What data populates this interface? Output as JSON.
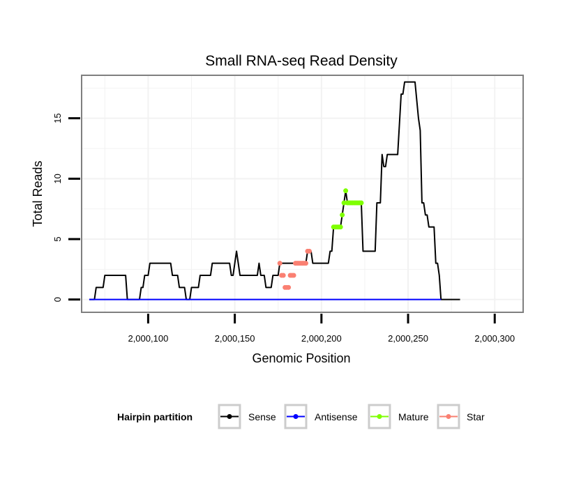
{
  "chart_data": {
    "type": "line",
    "title": "Small RNA-seq Read Density",
    "xlabel": "Genomic Position",
    "ylabel": "Total Reads",
    "xlim": [
      2000062,
      2000316
    ],
    "ylim": [
      -1,
      18.5
    ],
    "x_ticks": [
      2000100,
      2000150,
      2000200,
      2000250,
      2000300
    ],
    "x_tick_labels": [
      "2,000,100",
      "2,000,150",
      "2,000,200",
      "2,000,250",
      "2,000,300"
    ],
    "y_ticks": [
      0,
      5,
      10,
      15
    ],
    "y_tick_labels": [
      "0",
      "5",
      "10",
      "15"
    ],
    "grid": true,
    "legend": {
      "title": "Hairpin partition",
      "position": "bottom",
      "entries": [
        {
          "label": "Sense",
          "color": "#000000"
        },
        {
          "label": "Antisense",
          "color": "#0000ff"
        },
        {
          "label": "Mature",
          "color": "#7fff00"
        },
        {
          "label": "Star",
          "color": "#fa8072"
        }
      ]
    },
    "series": [
      {
        "name": "Sense",
        "color": "#000000",
        "style": "line",
        "points": [
          [
            2000066,
            0
          ],
          [
            2000069,
            0
          ],
          [
            2000070,
            1
          ],
          [
            2000074,
            1
          ],
          [
            2000075,
            2
          ],
          [
            2000087,
            2
          ],
          [
            2000088,
            0
          ],
          [
            2000095,
            0
          ],
          [
            2000096,
            1
          ],
          [
            2000097,
            1
          ],
          [
            2000098,
            2
          ],
          [
            2000100,
            2
          ],
          [
            2000101,
            3
          ],
          [
            2000113,
            3
          ],
          [
            2000114,
            2
          ],
          [
            2000117,
            2
          ],
          [
            2000118,
            1
          ],
          [
            2000121,
            1
          ],
          [
            2000122,
            0
          ],
          [
            2000124,
            0
          ],
          [
            2000125,
            1
          ],
          [
            2000129,
            1
          ],
          [
            2000130,
            2
          ],
          [
            2000136,
            2
          ],
          [
            2000137,
            3
          ],
          [
            2000147,
            3
          ],
          [
            2000148,
            2
          ],
          [
            2000149,
            2
          ],
          [
            2000150,
            3
          ],
          [
            2000151,
            4
          ],
          [
            2000152,
            3
          ],
          [
            2000153,
            2
          ],
          [
            2000163,
            2
          ],
          [
            2000164,
            3
          ],
          [
            2000165,
            2
          ],
          [
            2000167,
            2
          ],
          [
            2000168,
            1
          ],
          [
            2000171,
            1
          ],
          [
            2000172,
            2
          ],
          [
            2000175,
            2
          ],
          [
            2000176,
            3
          ],
          [
            2000191,
            3
          ],
          [
            2000192,
            4
          ],
          [
            2000194,
            4
          ],
          [
            2000195,
            3
          ],
          [
            2000204,
            3
          ],
          [
            2000205,
            4
          ],
          [
            2000206,
            4
          ],
          [
            2000207,
            6
          ],
          [
            2000211,
            6
          ],
          [
            2000212,
            7
          ],
          [
            2000213,
            8
          ],
          [
            2000214,
            9
          ],
          [
            2000215,
            8
          ],
          [
            2000223,
            8
          ],
          [
            2000224,
            4
          ],
          [
            2000231,
            4
          ],
          [
            2000232,
            8
          ],
          [
            2000234,
            8
          ],
          [
            2000235,
            12
          ],
          [
            2000236,
            11
          ],
          [
            2000237,
            11
          ],
          [
            2000238,
            12
          ],
          [
            2000244,
            12
          ],
          [
            2000246,
            17
          ],
          [
            2000247,
            17
          ],
          [
            2000248,
            18
          ],
          [
            2000254,
            18
          ],
          [
            2000256,
            15
          ],
          [
            2000257,
            14
          ],
          [
            2000258,
            8
          ],
          [
            2000259,
            8
          ],
          [
            2000260,
            7
          ],
          [
            2000261,
            7
          ],
          [
            2000262,
            6
          ],
          [
            2000265,
            6
          ],
          [
            2000266,
            3
          ],
          [
            2000267,
            3
          ],
          [
            2000268,
            2
          ],
          [
            2000269,
            0
          ],
          [
            2000280,
            0
          ]
        ]
      },
      {
        "name": "Antisense",
        "color": "#0000ff",
        "style": "line",
        "points": [
          [
            2000066,
            0
          ],
          [
            2000269,
            0
          ]
        ]
      },
      {
        "name": "Mature",
        "color": "#7fff00",
        "style": "points",
        "points": [
          [
            2000207,
            6
          ],
          [
            2000208,
            6
          ],
          [
            2000209,
            6
          ],
          [
            2000210,
            6
          ],
          [
            2000211,
            6
          ],
          [
            2000212,
            7
          ],
          [
            2000213,
            8
          ],
          [
            2000214,
            9
          ],
          [
            2000215,
            8
          ],
          [
            2000216,
            8
          ],
          [
            2000217,
            8
          ],
          [
            2000218,
            8
          ],
          [
            2000219,
            8
          ],
          [
            2000220,
            8
          ],
          [
            2000221,
            8
          ],
          [
            2000222,
            8
          ],
          [
            2000223,
            8
          ]
        ]
      },
      {
        "name": "Star",
        "color": "#fa8072",
        "style": "points",
        "points": [
          [
            2000176,
            3
          ],
          [
            2000177,
            2
          ],
          [
            2000178,
            2
          ],
          [
            2000179,
            1
          ],
          [
            2000180,
            1
          ],
          [
            2000181,
            1
          ],
          [
            2000182,
            2
          ],
          [
            2000183,
            2
          ],
          [
            2000184,
            2
          ],
          [
            2000185,
            3
          ],
          [
            2000186,
            3
          ],
          [
            2000187,
            3
          ],
          [
            2000188,
            3
          ],
          [
            2000189,
            3
          ],
          [
            2000190,
            3
          ],
          [
            2000191,
            3
          ],
          [
            2000192,
            4
          ],
          [
            2000193,
            4
          ]
        ]
      }
    ]
  }
}
